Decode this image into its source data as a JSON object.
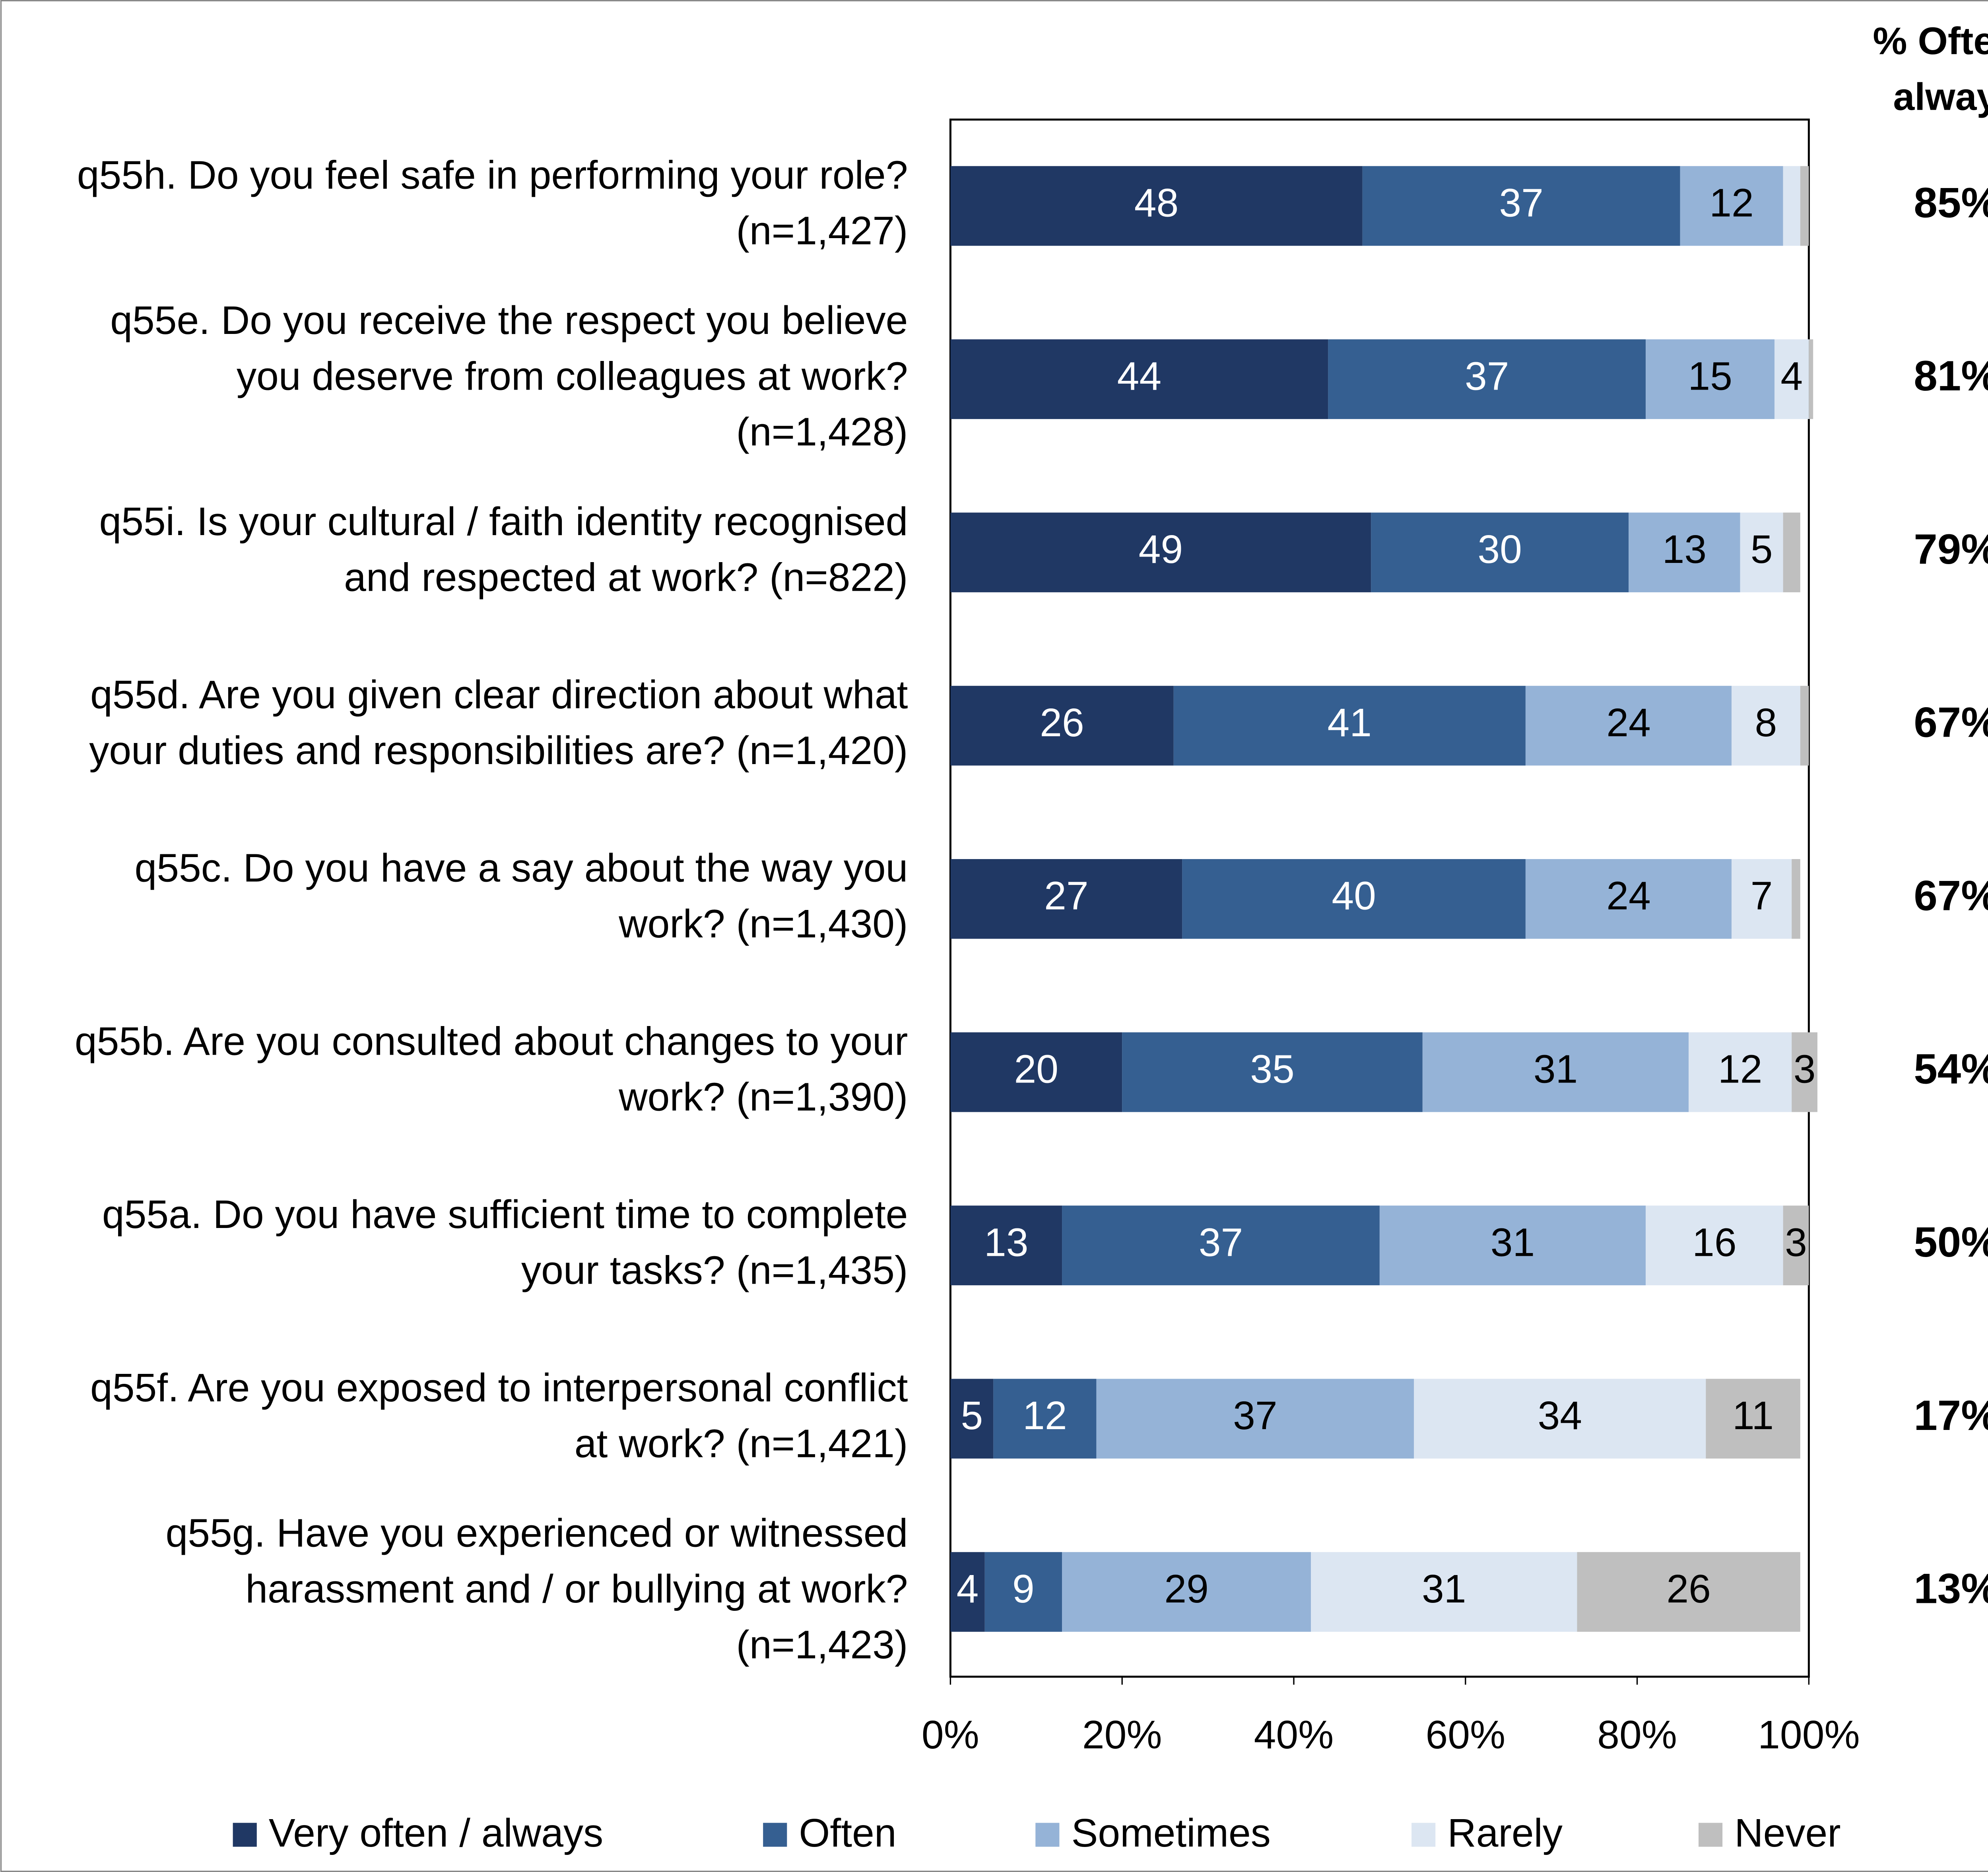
{
  "chart_data": {
    "type": "stacked-bar-horizontal",
    "categories": [
      [
        "q55h. Do you feel safe in performing your role?",
        "(n=1,427)"
      ],
      [
        "q55e. Do you receive the respect you believe",
        "you deserve from colleagues at work?",
        "(n=1,428)"
      ],
      [
        "q55i. Is your cultural / faith identity recognised",
        "and respected at work? (n=822)"
      ],
      [
        "q55d. Are you given clear direction about what",
        "your duties and responsibilities are? (n=1,420)"
      ],
      [
        "q55c. Do you have a say about the way you",
        "work? (n=1,430)"
      ],
      [
        "q55b. Are you consulted about changes to your",
        "work? (n=1,390)"
      ],
      [
        "q55a. Do you have sufficient time to complete",
        "your tasks? (n=1,435)"
      ],
      [
        "q55f. Are you exposed to interpersonal conflict",
        "at work? (n=1,421)"
      ],
      [
        "q55g. Have you experienced or witnessed",
        "harassment and / or bullying at work?",
        "(n=1,423)"
      ]
    ],
    "series": [
      {
        "name": "Very often / always",
        "color": "#203864",
        "values": [
          48,
          44,
          49,
          26,
          27,
          20,
          13,
          5,
          4
        ]
      },
      {
        "name": "Often",
        "color": "#355f91",
        "values": [
          37,
          37,
          30,
          41,
          40,
          35,
          37,
          12,
          9
        ]
      },
      {
        "name": "Sometimes",
        "color": "#95b3d7",
        "values": [
          12,
          15,
          13,
          24,
          24,
          31,
          31,
          37,
          29
        ]
      },
      {
        "name": "Rarely",
        "color": "#dce6f2",
        "values": [
          2,
          4,
          5,
          8,
          7,
          12,
          16,
          34,
          31
        ]
      },
      {
        "name": "Never",
        "color": "#bfbfbf",
        "values": [
          1,
          0.5,
          2,
          1,
          1,
          3,
          3,
          11,
          26
        ]
      }
    ],
    "xlim": [
      0,
      100
    ],
    "xticks": [
      {
        "value": 0,
        "label": "0%"
      },
      {
        "value": 20,
        "label": "20%"
      },
      {
        "value": 40,
        "label": "40%"
      },
      {
        "value": 60,
        "label": "60%"
      },
      {
        "value": 80,
        "label": "80%"
      },
      {
        "value": 100,
        "label": "100%"
      }
    ],
    "summary_title": [
      "% Often /",
      "always"
    ],
    "summary_labels": [
      "85%",
      "81%",
      "79%",
      "67%",
      "67%",
      "54%",
      "50%",
      "17%",
      "13%"
    ],
    "legend": "bottom"
  }
}
